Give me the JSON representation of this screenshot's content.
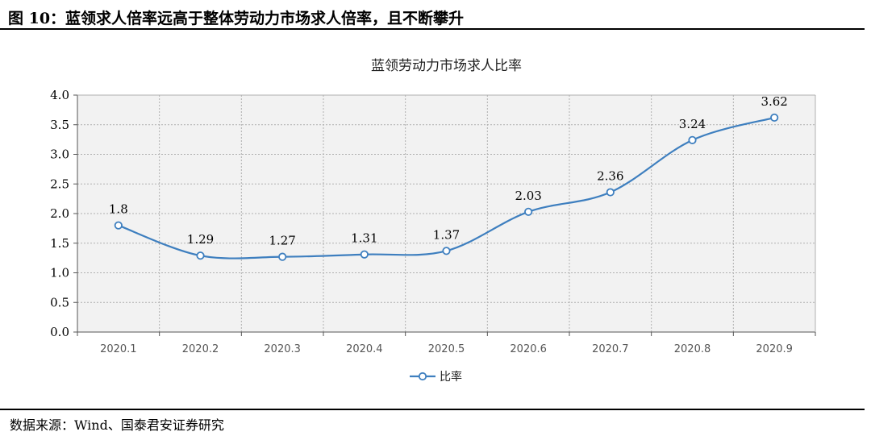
{
  "figure_title": "图 10：蓝领求人倍率远高于整体劳动力市场求人倍率，且不断攀升",
  "source_note": "数据来源：Wind、国泰君安证券研究",
  "colors": {
    "line": "#3e7fbf",
    "marker_fill": "#ffffff",
    "grid": "#b0b0b0",
    "plot_bg": "#f2f2f2"
  },
  "chart_data": {
    "type": "line",
    "title": "蓝领劳动力市场求人比率",
    "categories": [
      "2020.1",
      "2020.2",
      "2020.3",
      "2020.4",
      "2020.5",
      "2020.6",
      "2020.7",
      "2020.8",
      "2020.9"
    ],
    "series": [
      {
        "name": "比率",
        "values": [
          1.8,
          1.29,
          1.27,
          1.31,
          1.37,
          2.03,
          2.36,
          3.24,
          3.62
        ],
        "labels": [
          "1.8",
          "1.29",
          "1.27",
          "1.31",
          "1.37",
          "2.03",
          "2.36",
          "3.24",
          "3.62"
        ]
      }
    ],
    "ylim": [
      0,
      4
    ],
    "yticks": [
      "0.0",
      "0.5",
      "1.0",
      "1.5",
      "2.0",
      "2.5",
      "3.0",
      "3.5",
      "4.0"
    ],
    "grid": true,
    "legend": "bottom-center"
  }
}
